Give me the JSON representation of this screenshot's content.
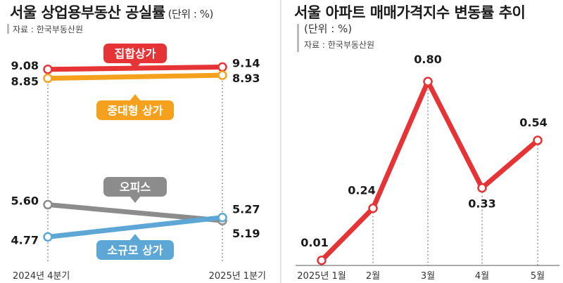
{
  "left_panel": {
    "title": "서울 상업용부동산 공실률",
    "unit": "(단위 : %)",
    "source": "자료 : 한국부동산원"
  },
  "right_panel": {
    "title": "서울 아파트 매매가격지수 변동률 추이",
    "unit": "(단위 : %)",
    "source": "자료 : 한국부동산원"
  },
  "chart_data": [
    {
      "type": "line",
      "title": "서울 상업용부동산 공실률",
      "unit": "(단위 : %)",
      "categories": [
        "2024년 4분기",
        "2025년 1분기"
      ],
      "ylim": [
        4.0,
        9.6
      ],
      "series": [
        {
          "name": "집합상가",
          "values": [
            9.08,
            9.14
          ],
          "color": "#e63335"
        },
        {
          "name": "중대형 상가",
          "values": [
            8.85,
            8.93
          ],
          "color": "#f5a11e"
        },
        {
          "name": "오피스",
          "values": [
            5.6,
            5.19
          ],
          "color": "#8c8c8c"
        },
        {
          "name": "소규모 상가",
          "values": [
            4.77,
            5.27
          ],
          "color": "#5ca7d6"
        }
      ]
    },
    {
      "type": "line",
      "title": "서울 아파트 매매가격지수 변동률 추이",
      "unit": "(단위 : %)",
      "categories": [
        "2025년 1월",
        "2월",
        "3월",
        "4월",
        "5월"
      ],
      "ylim": [
        0,
        0.85
      ],
      "series": [
        {
          "values": [
            0.01,
            0.24,
            0.8,
            0.33,
            0.54
          ],
          "color": "#e63335"
        }
      ]
    }
  ]
}
